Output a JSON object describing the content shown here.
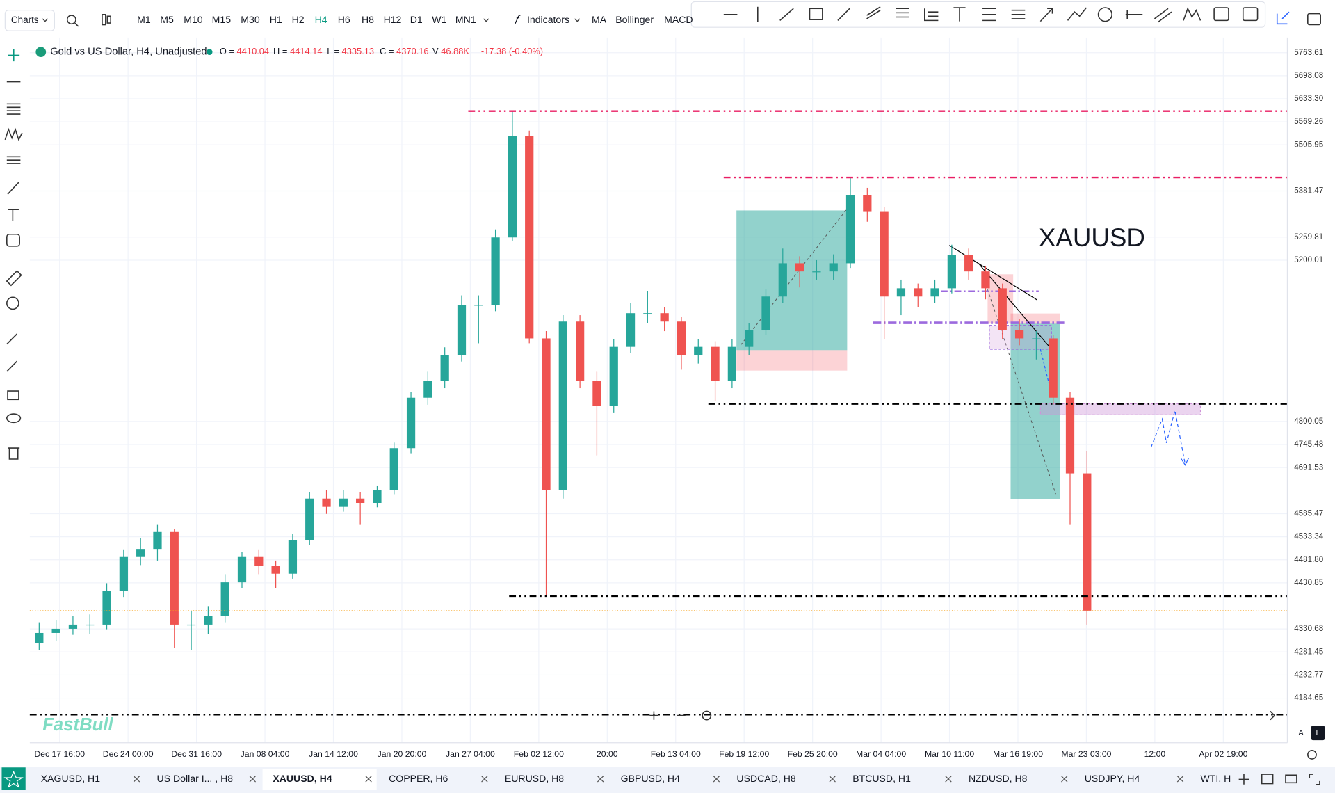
{
  "toolbar": {
    "charts": "Charts",
    "timeframes": [
      "M1",
      "M5",
      "M10",
      "M15",
      "M30",
      "H1",
      "H2",
      "H4",
      "H6",
      "H8",
      "H12",
      "D1",
      "W1",
      "MN1"
    ],
    "active_timeframe": 7,
    "indicators": "Indicators",
    "shortcuts": [
      "MA",
      "Bollinger",
      "MACD"
    ]
  },
  "legend": {
    "symbol": "Gold vs US Dollar, H4, Unadjusted",
    "fields": [
      {
        "label": "O =",
        "value": "4410.04"
      },
      {
        "label": "H =",
        "value": "4414.14"
      },
      {
        "label": "L =",
        "value": "4335.13"
      },
      {
        "label": "C =",
        "value": "4370.16"
      },
      {
        "label": "V",
        "value": "46.88K"
      },
      {
        "value": "-17.38 (-0.40%)"
      }
    ]
  },
  "annotation": "XAUUSD",
  "watermark": "FastBull",
  "chart_data": {
    "type": "candlestick",
    "log_scale": true,
    "grid": true,
    "up_color": "#26a69a",
    "down_color": "#ef5350",
    "ylim": [
      4093,
      5817
    ],
    "yticks": [
      5763.61,
      5698.08,
      {
        "value": 5633.3,
        "label": "5633.30"
      },
      5569.26,
      5505.95,
      5381.47,
      5259.81,
      5200.01,
      4800.05,
      4745.48,
      4691.53,
      4585.47,
      4533.34,
      {
        "value": 4481.8,
        "label": "4481.80"
      },
      4430.85,
      4330.68,
      4281.45,
      4232.77,
      4184.65
    ],
    "categories": [
      "Dec 17 16:00",
      "Dec 24 00:00",
      "Dec 31 16:00",
      "Jan 08 04:00",
      "Jan 14 12:00",
      "Jan 20 20:00",
      "Jan 27 04:00",
      "Feb 02 12:00",
      "20:00",
      "Feb 13 04:00",
      "Feb 19 12:00",
      "Feb 25 20:00",
      "Mar 04 04:00",
      "Mar 10 11:00",
      "Mar 16 19:00",
      "Mar 23 03:00",
      "12:00",
      "Apr 02 19:00"
    ],
    "candles": [
      [
        4300,
        4345,
        4285,
        4322
      ],
      [
        4322,
        4350,
        4305,
        4331
      ],
      [
        4331,
        4358,
        4318,
        4340
      ],
      [
        4340,
        4362,
        4320,
        4340
      ],
      [
        4340,
        4430,
        4330,
        4413
      ],
      [
        4413,
        4505,
        4400,
        4488
      ],
      [
        4488,
        4530,
        4470,
        4506
      ],
      [
        4506,
        4560,
        4480,
        4544
      ],
      [
        4544,
        4550,
        4290,
        4340
      ],
      [
        4340,
        4370,
        4285,
        4340
      ],
      [
        4340,
        4380,
        4320,
        4359
      ],
      [
        4359,
        4450,
        4345,
        4432
      ],
      [
        4432,
        4500,
        4420,
        4488
      ],
      [
        4488,
        4505,
        4450,
        4469
      ],
      [
        4469,
        4480,
        4420,
        4451
      ],
      [
        4451,
        4540,
        4440,
        4525
      ],
      [
        4525,
        4635,
        4515,
        4620
      ],
      [
        4620,
        4640,
        4585,
        4601
      ],
      [
        4601,
        4640,
        4590,
        4620
      ],
      [
        4620,
        4635,
        4560,
        4610
      ],
      [
        4610,
        4650,
        4600,
        4639
      ],
      [
        4639,
        4750,
        4630,
        4737
      ],
      [
        4737,
        4870,
        4725,
        4857
      ],
      [
        4857,
        4920,
        4840,
        4898
      ],
      [
        4898,
        4980,
        4880,
        4960
      ],
      [
        4960,
        5110,
        4945,
        5086
      ],
      [
        5086,
        5110,
        4990,
        5086
      ],
      [
        5086,
        5280,
        5070,
        5259
      ],
      [
        5259,
        5599,
        5250,
        5530
      ],
      [
        5530,
        5545,
        4990,
        5002
      ],
      [
        5002,
        5020,
        4401,
        4639
      ],
      [
        4639,
        5060,
        4620,
        5044
      ],
      [
        5044,
        5060,
        4880,
        4898
      ],
      [
        4898,
        4920,
        4720,
        4837
      ],
      [
        4837,
        5000,
        4820,
        4981
      ],
      [
        4981,
        5090,
        4965,
        5065
      ],
      [
        5065,
        5120,
        5040,
        5065
      ],
      [
        5065,
        5080,
        5020,
        5044
      ],
      [
        5044,
        5055,
        4925,
        4960
      ],
      [
        4960,
        5000,
        4940,
        4981
      ],
      [
        4981,
        4995,
        4850,
        4898
      ],
      [
        4898,
        5000,
        4880,
        4981
      ],
      [
        4981,
        5040,
        4960,
        5023
      ],
      [
        5023,
        5125,
        5010,
        5107
      ],
      [
        5107,
        5230,
        5090,
        5192
      ],
      [
        5192,
        5210,
        5130,
        5171
      ],
      [
        5171,
        5200,
        5150,
        5171
      ],
      [
        5171,
        5215,
        5150,
        5192
      ],
      [
        5192,
        5418,
        5180,
        5370
      ],
      [
        5370,
        5390,
        5300,
        5326
      ],
      [
        5326,
        5340,
        5000,
        5107
      ],
      [
        5107,
        5150,
        5060,
        5128
      ],
      [
        5128,
        5140,
        5080,
        5107
      ],
      [
        5107,
        5150,
        5090,
        5128
      ],
      [
        5128,
        5240,
        5115,
        5214
      ],
      [
        5214,
        5230,
        5150,
        5171
      ],
      [
        5171,
        5185,
        5100,
        5128
      ],
      [
        5128,
        5140,
        5000,
        5023
      ],
      [
        5023,
        5050,
        4985,
        5002
      ],
      [
        5002,
        5020,
        4950,
        5002
      ],
      [
        5002,
        5010,
        4840,
        4857
      ],
      [
        4857,
        4870,
        4560,
        4678
      ],
      [
        4678,
        4730,
        4340,
        4370.16
      ]
    ],
    "price_lines": [
      {
        "value": 5598.98,
        "color": "#e91e63",
        "style": "dash-dot"
      },
      {
        "value": 5417.79,
        "color": "#e91e63",
        "style": "dash-dot"
      },
      {
        "value": 5333.12,
        "color": "#089981",
        "style": "none"
      },
      {
        "value": 5162.12,
        "color": "#f23645",
        "style": "none"
      },
      {
        "value": 5117.48,
        "color": "#787b86",
        "style": "none"
      },
      {
        "value": 5066.79,
        "color": "#f23645",
        "style": "none"
      },
      {
        "value": 5032.52,
        "color": "#787b86",
        "style": "none"
      },
      {
        "value": 4991.15,
        "color": "#089981",
        "style": "none"
      },
      {
        "value": 4925.24,
        "color": "#f23645",
        "style": "none"
      },
      {
        "value": 4842.06,
        "color": "#000000",
        "style": "dash-dot"
      },
      {
        "value": 4619.55,
        "color": "#089981",
        "style": "none"
      },
      {
        "value": 4401.82,
        "color": "#000000",
        "style": "dash-dot"
      },
      {
        "value": 4370.16,
        "color": "#f7a21b",
        "style": "dotted"
      },
      {
        "value": 4150.58,
        "color": "#000000",
        "style": "dash-dot"
      }
    ]
  },
  "tabs": {
    "items": [
      "XAGUSD, H1",
      "US Dollar I... , H8",
      "XAUUSD, H4",
      "COPPER, H6",
      "EURUSD, H8",
      "GBPUSD, H4",
      "USDCAD, H8",
      "BTCUSD, H1",
      "NZDUSD, H8",
      "USDJPY, H4",
      "WTI, H"
    ],
    "active": 2
  },
  "scale_buttons": [
    "A",
    "L"
  ]
}
